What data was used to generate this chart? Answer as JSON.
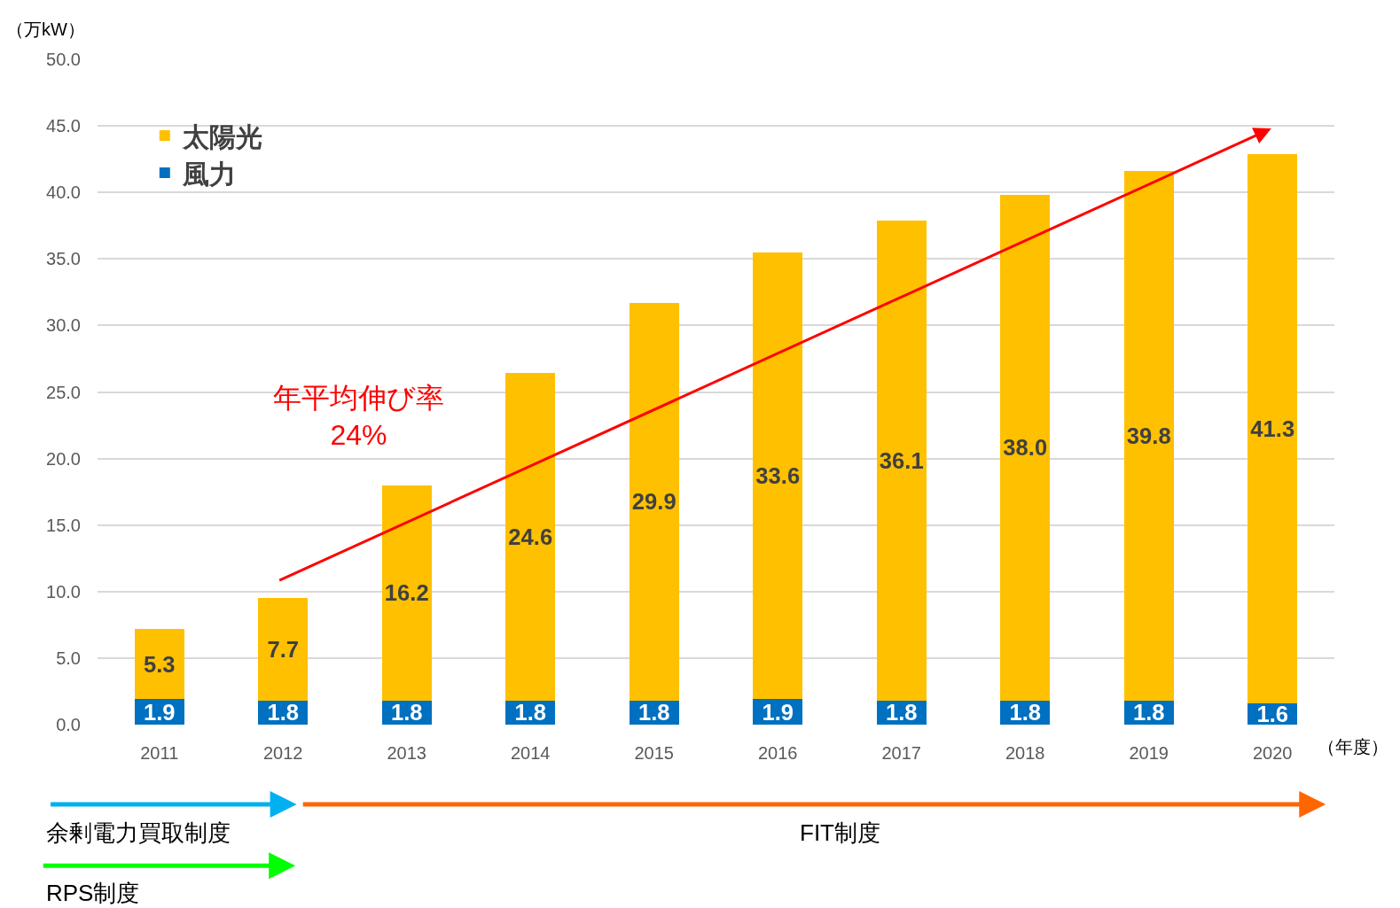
{
  "chart_data": {
    "type": "bar",
    "stacked": true,
    "legend": "top left",
    "grid": "y",
    "ylabel": "（万kW）",
    "xlabel": "（年度）",
    "categories": [
      "2011",
      "2012",
      "2013",
      "2014",
      "2015",
      "2016",
      "2017",
      "2018",
      "2019",
      "2020"
    ],
    "ylim": [
      0,
      50
    ],
    "yticks": [
      {
        "value": 0,
        "label": "0.0"
      },
      {
        "value": 5,
        "label": "5.0"
      },
      {
        "value": 10,
        "label": "10.0"
      },
      {
        "value": 15,
        "label": "15.0"
      },
      {
        "value": 20,
        "label": "20.0"
      },
      {
        "value": 25,
        "label": "25.0"
      },
      {
        "value": 30,
        "label": "30.0"
      },
      {
        "value": 35,
        "label": "35.0"
      },
      {
        "value": 40,
        "label": "40.0"
      },
      {
        "value": 45,
        "label": "45.0"
      },
      {
        "value": 50,
        "label": "50.0"
      }
    ],
    "series": [
      {
        "name": "風力",
        "color": "#0070c0",
        "values": [
          1.9,
          1.8,
          1.8,
          1.8,
          1.8,
          1.9,
          1.8,
          1.8,
          1.8,
          1.6
        ],
        "value_labels": [
          "1.9",
          "1.8",
          "1.8",
          "1.8",
          "1.8",
          "1.9",
          "1.8",
          "1.8",
          "1.8",
          "1.6"
        ]
      },
      {
        "name": "太陽光",
        "color": "#ffc000",
        "values": [
          5.3,
          7.7,
          16.2,
          24.6,
          29.9,
          33.6,
          36.1,
          38.0,
          39.8,
          41.3
        ],
        "value_labels": [
          "5.3",
          "7.7",
          "16.2",
          "24.6",
          "29.9",
          "33.6",
          "36.1",
          "38.0",
          "39.8",
          "41.3"
        ]
      }
    ],
    "annotations": [
      "年平均伸び率\n24%",
      "余剰電力買取制度",
      "FIT制度",
      "RPS制度"
    ]
  }
}
